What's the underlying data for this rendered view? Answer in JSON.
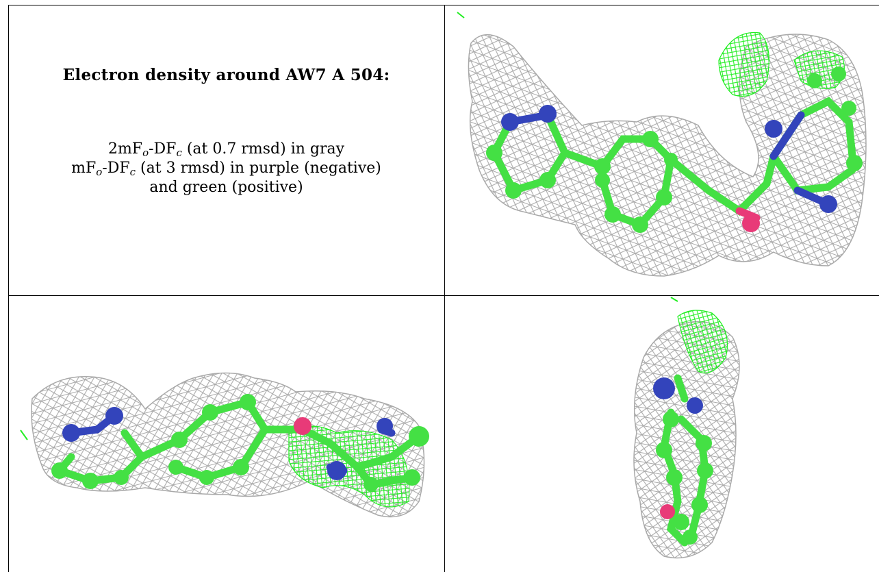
{
  "caption": {
    "title": "Electron density around AW7 A 504:",
    "line1": {
      "prefix": "2mF",
      "sub1": "o",
      "mid": "-DF",
      "sub2": "c",
      "suffix": " (at 0.7 rmsd) in gray"
    },
    "line2": {
      "prefix": "mF",
      "sub1": "o",
      "mid": "-DF",
      "sub2": "c",
      "suffix": " (at 3 rmsd) in purple (negative)"
    },
    "line3": "and green (positive)"
  },
  "colors": {
    "mesh_2fofc": "#a9a9a9",
    "mesh_positive": "#22ee22",
    "carbon": "#44e044",
    "nitrogen": "#3344bb",
    "oxygen": "#e83a78"
  },
  "views": [
    {
      "name": "view-top-right",
      "description_icon": "molecule-density-view"
    },
    {
      "name": "view-bottom-left",
      "description_icon": "molecule-density-view"
    },
    {
      "name": "view-bottom-right",
      "description_icon": "molecule-density-view"
    }
  ]
}
